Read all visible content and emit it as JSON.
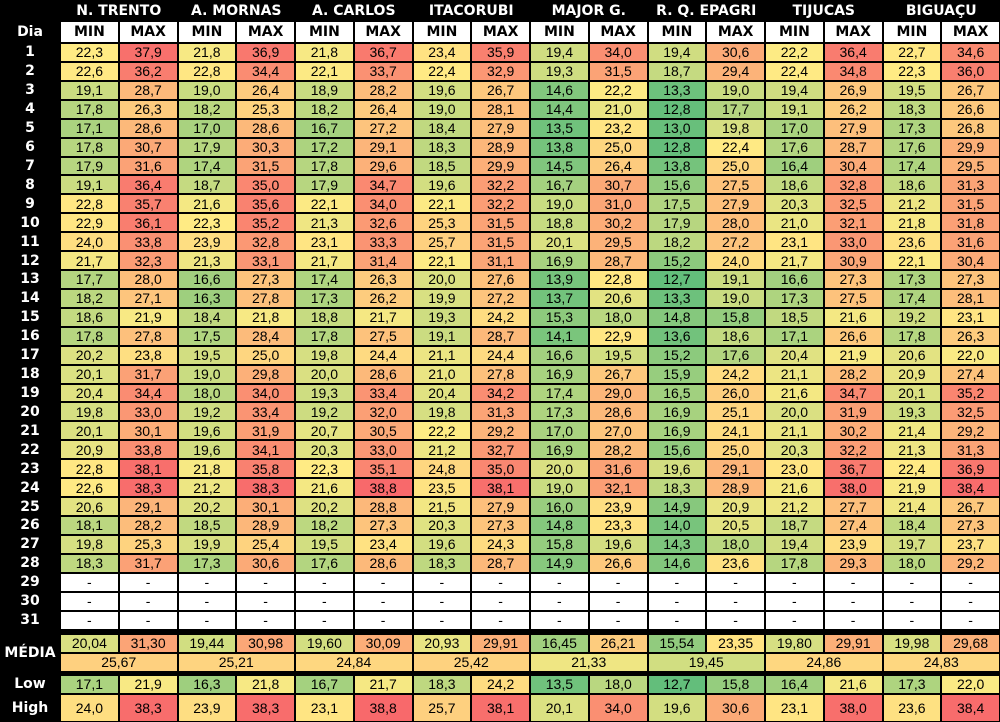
{
  "header": {
    "day_label": "Dia",
    "min_label": "MIN",
    "max_label": "MAX",
    "stations": [
      "N. TRENTO",
      "A. MORNAS",
      "A. CARLOS",
      "ITACORUBI",
      "MAJOR G.",
      "R. Q. EPAGRI",
      "TIJUCAS",
      "BIGUAÇU"
    ]
  },
  "rows": [
    {
      "day": "1",
      "values": [
        "22,3",
        "37,9",
        "21,8",
        "36,9",
        "21,8",
        "36,7",
        "23,4",
        "35,9",
        "19,4",
        "34,0",
        "19,4",
        "30,6",
        "22,2",
        "36,4",
        "22,7",
        "34,6"
      ]
    },
    {
      "day": "2",
      "values": [
        "22,6",
        "36,2",
        "22,8",
        "34,4",
        "22,1",
        "33,7",
        "22,4",
        "32,9",
        "19,3",
        "31,5",
        "18,7",
        "29,4",
        "22,4",
        "34,8",
        "22,3",
        "36,0"
      ]
    },
    {
      "day": "3",
      "values": [
        "19,1",
        "28,7",
        "19,0",
        "26,4",
        "18,9",
        "28,2",
        "19,6",
        "26,7",
        "14,6",
        "22,2",
        "13,3",
        "19,0",
        "19,4",
        "26,9",
        "19,5",
        "26,7"
      ]
    },
    {
      "day": "4",
      "values": [
        "17,8",
        "26,3",
        "18,2",
        "25,3",
        "18,2",
        "26,4",
        "19,0",
        "28,1",
        "14,4",
        "21,0",
        "12,8",
        "17,7",
        "19,1",
        "26,2",
        "18,3",
        "26,6"
      ]
    },
    {
      "day": "5",
      "values": [
        "17,1",
        "28,6",
        "17,0",
        "28,6",
        "16,7",
        "27,2",
        "18,4",
        "27,9",
        "13,5",
        "23,2",
        "13,0",
        "19,8",
        "17,0",
        "27,9",
        "17,3",
        "26,8"
      ]
    },
    {
      "day": "6",
      "values": [
        "17,8",
        "30,7",
        "17,9",
        "30,3",
        "17,2",
        "29,1",
        "18,3",
        "28,9",
        "13,8",
        "25,0",
        "12,8",
        "22,4",
        "17,6",
        "28,7",
        "17,6",
        "29,9"
      ]
    },
    {
      "day": "7",
      "values": [
        "17,9",
        "31,6",
        "17,4",
        "31,5",
        "17,8",
        "29,6",
        "18,5",
        "29,9",
        "14,5",
        "26,4",
        "13,8",
        "25,0",
        "16,4",
        "30,4",
        "17,4",
        "29,5"
      ]
    },
    {
      "day": "8",
      "values": [
        "19,1",
        "36,4",
        "18,7",
        "35,0",
        "17,9",
        "34,7",
        "19,6",
        "32,2",
        "16,7",
        "30,7",
        "15,6",
        "27,5",
        "18,6",
        "32,8",
        "18,6",
        "31,3"
      ]
    },
    {
      "day": "9",
      "values": [
        "22,8",
        "35,7",
        "21,6",
        "35,6",
        "22,1",
        "34,0",
        "22,1",
        "32,2",
        "19,0",
        "31,0",
        "17,5",
        "27,9",
        "20,3",
        "32,5",
        "21,2",
        "31,5"
      ]
    },
    {
      "day": "10",
      "values": [
        "22,9",
        "36,1",
        "22,3",
        "35,2",
        "21,3",
        "32,6",
        "25,3",
        "31,5",
        "18,8",
        "30,2",
        "17,9",
        "28,0",
        "21,0",
        "32,1",
        "21,8",
        "31,8"
      ]
    },
    {
      "day": "11",
      "values": [
        "24,0",
        "33,8",
        "23,9",
        "32,8",
        "23,1",
        "33,3",
        "25,7",
        "31,5",
        "20,1",
        "29,5",
        "18,2",
        "27,2",
        "23,1",
        "33,0",
        "23,6",
        "31,6"
      ]
    },
    {
      "day": "12",
      "values": [
        "21,7",
        "32,3",
        "21,3",
        "33,1",
        "21,7",
        "31,4",
        "22,1",
        "31,1",
        "16,9",
        "28,7",
        "15,2",
        "24,0",
        "21,7",
        "30,9",
        "22,1",
        "30,4"
      ]
    },
    {
      "day": "13",
      "values": [
        "17,7",
        "28,0",
        "16,6",
        "27,3",
        "17,4",
        "26,3",
        "20,0",
        "27,6",
        "13,9",
        "22,8",
        "12,7",
        "19,1",
        "16,6",
        "27,3",
        "17,3",
        "27,3"
      ]
    },
    {
      "day": "14",
      "values": [
        "18,2",
        "27,1",
        "16,3",
        "27,8",
        "17,3",
        "26,2",
        "19,9",
        "27,2",
        "13,7",
        "20,6",
        "13,3",
        "19,0",
        "17,3",
        "27,5",
        "17,4",
        "28,1"
      ]
    },
    {
      "day": "15",
      "values": [
        "18,6",
        "21,9",
        "18,4",
        "21,8",
        "18,8",
        "21,7",
        "19,3",
        "24,2",
        "15,3",
        "18,0",
        "14,8",
        "15,8",
        "18,5",
        "21,6",
        "19,2",
        "23,1"
      ]
    },
    {
      "day": "16",
      "values": [
        "17,8",
        "27,8",
        "17,5",
        "28,4",
        "17,8",
        "27,5",
        "19,1",
        "28,7",
        "14,1",
        "22,9",
        "13,6",
        "18,6",
        "17,1",
        "26,6",
        "17,8",
        "26,3"
      ]
    },
    {
      "day": "17",
      "values": [
        "20,2",
        "23,8",
        "19,5",
        "25,0",
        "19,8",
        "24,4",
        "21,1",
        "24,4",
        "16,6",
        "19,5",
        "15,2",
        "17,6",
        "20,4",
        "21,9",
        "20,6",
        "22,0"
      ]
    },
    {
      "day": "18",
      "values": [
        "20,1",
        "31,7",
        "19,0",
        "29,8",
        "20,0",
        "28,6",
        "21,0",
        "27,8",
        "16,9",
        "26,7",
        "15,9",
        "24,2",
        "21,1",
        "28,2",
        "20,9",
        "27,4"
      ]
    },
    {
      "day": "19",
      "values": [
        "20,4",
        "34,4",
        "18,0",
        "34,0",
        "19,3",
        "33,4",
        "20,4",
        "34,2",
        "17,4",
        "29,0",
        "16,5",
        "26,0",
        "21,6",
        "34,7",
        "20,1",
        "35,2"
      ]
    },
    {
      "day": "20",
      "values": [
        "19,8",
        "33,0",
        "19,2",
        "33,4",
        "19,2",
        "32,0",
        "19,8",
        "31,3",
        "17,3",
        "28,6",
        "16,9",
        "25,1",
        "20,0",
        "31,9",
        "19,3",
        "32,5"
      ]
    },
    {
      "day": "21",
      "values": [
        "20,1",
        "30,1",
        "19,6",
        "31,9",
        "20,7",
        "30,5",
        "22,2",
        "29,2",
        "17,0",
        "27,0",
        "16,9",
        "24,1",
        "21,1",
        "30,2",
        "21,4",
        "29,2"
      ]
    },
    {
      "day": "22",
      "values": [
        "20,9",
        "33,8",
        "19,6",
        "34,1",
        "20,3",
        "33,0",
        "21,2",
        "32,7",
        "16,9",
        "28,2",
        "15,6",
        "25,0",
        "20,3",
        "32,2",
        "21,3",
        "31,3"
      ]
    },
    {
      "day": "23",
      "values": [
        "22,8",
        "38,1",
        "21,8",
        "35,8",
        "22,3",
        "35,1",
        "24,8",
        "35,0",
        "20,0",
        "31,6",
        "19,6",
        "29,1",
        "23,0",
        "36,7",
        "22,4",
        "36,9"
      ]
    },
    {
      "day": "24",
      "values": [
        "22,6",
        "38,3",
        "21,2",
        "38,3",
        "21,6",
        "38,8",
        "23,5",
        "38,1",
        "19,0",
        "32,1",
        "18,3",
        "28,9",
        "21,6",
        "38,0",
        "21,9",
        "38,4"
      ]
    },
    {
      "day": "25",
      "values": [
        "20,6",
        "29,1",
        "20,2",
        "30,1",
        "20,2",
        "28,8",
        "21,5",
        "27,9",
        "16,0",
        "23,9",
        "14,9",
        "20,9",
        "21,2",
        "27,7",
        "21,4",
        "26,7"
      ]
    },
    {
      "day": "26",
      "values": [
        "18,1",
        "28,2",
        "18,5",
        "28,9",
        "18,2",
        "27,3",
        "20,3",
        "27,3",
        "14,8",
        "23,3",
        "14,0",
        "20,5",
        "18,7",
        "27,4",
        "18,4",
        "27,3"
      ]
    },
    {
      "day": "27",
      "values": [
        "19,8",
        "25,3",
        "19,9",
        "25,4",
        "19,5",
        "23,4",
        "19,6",
        "24,3",
        "15,8",
        "19,6",
        "14,3",
        "18,0",
        "19,4",
        "23,9",
        "19,7",
        "23,7"
      ]
    },
    {
      "day": "28",
      "values": [
        "18,3",
        "31,7",
        "17,3",
        "30,6",
        "17,6",
        "28,6",
        "18,3",
        "28,7",
        "14,9",
        "26,6",
        "14,6",
        "23,6",
        "17,8",
        "29,3",
        "18,0",
        "29,2"
      ]
    },
    {
      "day": "29",
      "values": [
        "-",
        "-",
        "-",
        "-",
        "-",
        "-",
        "-",
        "-",
        "-",
        "-",
        "-",
        "-",
        "-",
        "-",
        "-",
        "-"
      ]
    },
    {
      "day": "30",
      "values": [
        "-",
        "-",
        "-",
        "-",
        "-",
        "-",
        "-",
        "-",
        "-",
        "-",
        "-",
        "-",
        "-",
        "-",
        "-",
        "-"
      ]
    },
    {
      "day": "31",
      "values": [
        "-",
        "-",
        "-",
        "-",
        "-",
        "-",
        "-",
        "-",
        "-",
        "-",
        "-",
        "-",
        "-",
        "-",
        "-",
        "-"
      ]
    }
  ],
  "media": {
    "label": "MÉDIA",
    "values": [
      "20,04",
      "31,30",
      "19,44",
      "30,98",
      "19,60",
      "30,09",
      "20,93",
      "29,91",
      "16,45",
      "26,21",
      "15,54",
      "23,35",
      "19,80",
      "29,91",
      "19,98",
      "29,68"
    ],
    "combined": [
      "25,67",
      "25,21",
      "24,84",
      "25,42",
      "21,33",
      "19,45",
      "24,86",
      "24,83"
    ]
  },
  "low": {
    "label": "Low",
    "values": [
      "17,1",
      "21,9",
      "16,3",
      "21,8",
      "16,7",
      "21,7",
      "18,3",
      "24,2",
      "13,5",
      "18,0",
      "12,7",
      "15,8",
      "16,4",
      "21,6",
      "17,3",
      "22,0"
    ]
  },
  "high": {
    "label": "High",
    "values": [
      "24,0",
      "38,3",
      "23,9",
      "38,3",
      "23,1",
      "38,8",
      "25,7",
      "38,1",
      "20,1",
      "34,0",
      "19,6",
      "30,6",
      "23,1",
      "38,0",
      "23,6",
      "38,4"
    ]
  },
  "colors": {
    "scale_low": "#63be7b",
    "scale_mid": "#ffeb84",
    "scale_high": "#f8696b",
    "empty": "#ffffff",
    "header_bg": "#000000",
    "header_text": "#ffffff"
  }
}
